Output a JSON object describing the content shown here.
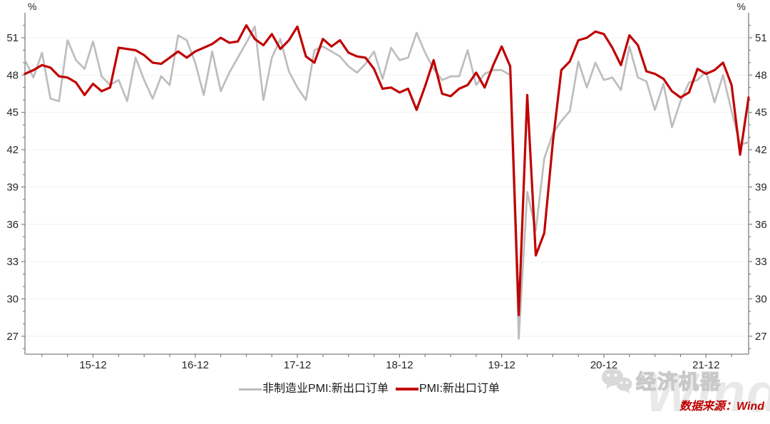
{
  "chart_data": {
    "type": "line",
    "title": "",
    "unit_label_left": "%",
    "unit_label_right": "%",
    "grid": "horizontal-light",
    "legend_position": "bottom-center",
    "ylim": [
      25.5,
      53.0
    ],
    "y_ticks": [
      27,
      30,
      33,
      36,
      39,
      42,
      45,
      48,
      51
    ],
    "x_tick_labels": [
      "15-12",
      "16-12",
      "17-12",
      "18-12",
      "19-12",
      "20-12",
      "21-12"
    ],
    "x_tick_label_indices": [
      8,
      20,
      32,
      44,
      56,
      68,
      80
    ],
    "x": [
      "15-04",
      "15-05",
      "15-06",
      "15-07",
      "15-08",
      "15-09",
      "15-10",
      "15-11",
      "15-12",
      "16-01",
      "16-02",
      "16-03",
      "16-04",
      "16-05",
      "16-06",
      "16-07",
      "16-08",
      "16-09",
      "16-10",
      "16-11",
      "16-12",
      "17-01",
      "17-02",
      "17-03",
      "17-04",
      "17-05",
      "17-06",
      "17-07",
      "17-08",
      "17-09",
      "17-10",
      "17-11",
      "17-12",
      "18-01",
      "18-02",
      "18-03",
      "18-04",
      "18-05",
      "18-06",
      "18-07",
      "18-08",
      "18-09",
      "18-10",
      "18-11",
      "18-12",
      "19-01",
      "19-02",
      "19-03",
      "19-04",
      "19-05",
      "19-06",
      "19-07",
      "19-08",
      "19-09",
      "19-10",
      "19-11",
      "19-12",
      "20-01",
      "20-02",
      "20-03",
      "20-04",
      "20-05",
      "20-06",
      "20-07",
      "20-08",
      "20-09",
      "20-10",
      "20-11",
      "20-12",
      "21-01",
      "21-02",
      "21-03",
      "21-04",
      "21-05",
      "21-06",
      "21-07",
      "21-08",
      "21-09",
      "21-10",
      "21-11",
      "21-12",
      "22-01",
      "22-02",
      "22-03",
      "22-04",
      "22-05"
    ],
    "series": [
      {
        "name": "非制造业PMI:新出口订单",
        "color": "#bdbdbd",
        "values": [
          49.2,
          47.8,
          49.8,
          46.1,
          45.9,
          50.8,
          49.2,
          48.5,
          50.7,
          47.9,
          47.2,
          47.6,
          45.9,
          49.4,
          47.6,
          46.1,
          47.9,
          47.2,
          51.2,
          50.8,
          49.0,
          46.4,
          49.9,
          46.7,
          48.2,
          49.4,
          50.6,
          51.9,
          46.0,
          49.4,
          50.9,
          48.3,
          47.0,
          46.0,
          50.0,
          50.3,
          49.9,
          49.5,
          48.7,
          48.2,
          48.9,
          49.9,
          47.7,
          50.2,
          49.2,
          49.4,
          51.4,
          49.8,
          48.5,
          47.6,
          47.9,
          47.9,
          50.0,
          47.2,
          48.1,
          48.4,
          48.4,
          48.0,
          26.8,
          38.6,
          35.5,
          41.3,
          43.3,
          44.3,
          45.1,
          49.1,
          47.0,
          49.0,
          47.6,
          47.8,
          46.8,
          50.3,
          47.8,
          47.5,
          45.2,
          47.3,
          43.8,
          45.9,
          47.4,
          47.6,
          48.3,
          45.8,
          48.0,
          45.1,
          42.4,
          42.6
        ]
      },
      {
        "name": "PMI:新出口订单",
        "color": "#c00000",
        "values": [
          48.1,
          48.4,
          48.8,
          48.6,
          47.9,
          47.8,
          47.4,
          46.4,
          47.3,
          46.7,
          47.0,
          50.2,
          50.1,
          50.0,
          49.6,
          49.0,
          48.9,
          49.4,
          49.9,
          49.4,
          49.9,
          50.2,
          50.5,
          51.0,
          50.6,
          50.7,
          52.0,
          50.9,
          50.4,
          51.3,
          50.1,
          50.8,
          51.9,
          49.5,
          49.0,
          50.9,
          50.3,
          50.8,
          49.8,
          49.5,
          49.4,
          48.5,
          46.9,
          47.0,
          46.6,
          46.9,
          45.2,
          47.1,
          49.2,
          46.5,
          46.3,
          46.9,
          47.2,
          48.2,
          47.0,
          48.8,
          50.3,
          48.7,
          28.7,
          46.4,
          33.5,
          35.3,
          42.6,
          48.4,
          49.1,
          50.8,
          51.0,
          51.5,
          51.3,
          50.2,
          48.8,
          51.2,
          50.4,
          48.3,
          48.1,
          47.7,
          46.7,
          46.2,
          46.6,
          48.5,
          48.1,
          48.4,
          49.0,
          47.2,
          41.6,
          46.2
        ]
      }
    ]
  },
  "legend": {
    "items": [
      {
        "label": "非制造业PMI:新出口订单",
        "color": "#bdbdbd"
      },
      {
        "label": "PMI:新出口订单",
        "color": "#c00000"
      }
    ]
  },
  "branding": {
    "logo_text": "经济机器",
    "watermark_text": "Wind"
  },
  "source": {
    "text": "数据来源：Wind"
  },
  "style": {
    "axis_color": "#7f7f7f",
    "label_color": "#262626",
    "gridline_color": "#f0f0f0"
  }
}
